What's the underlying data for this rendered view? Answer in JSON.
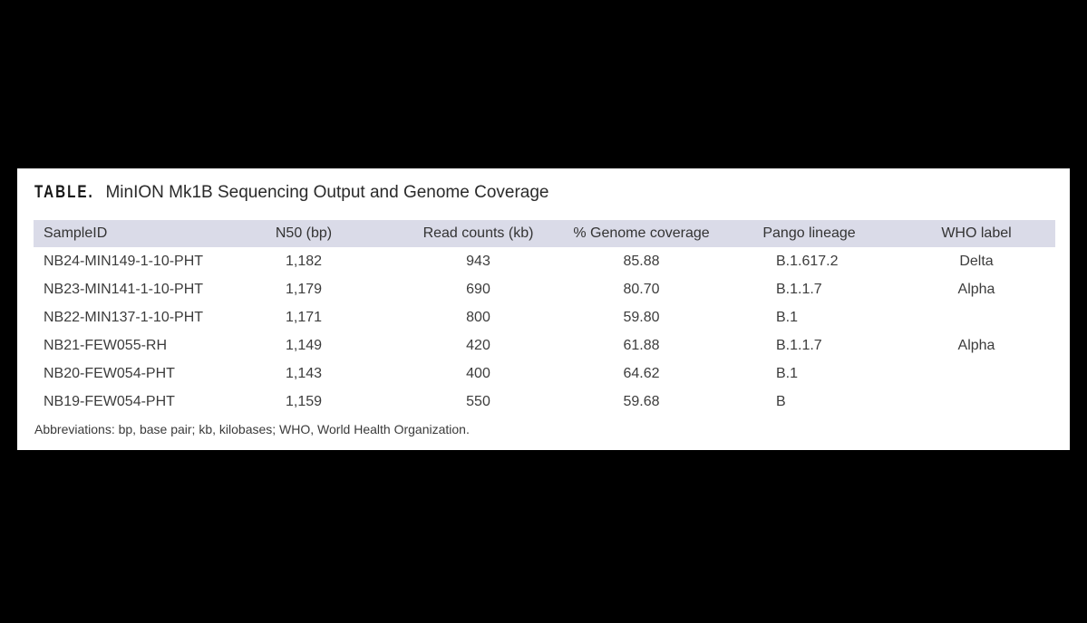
{
  "page": {
    "background_color": "#000000",
    "panel_color": "#ffffff"
  },
  "title": {
    "label": "TABLE.",
    "text": "MinION Mk1B Sequencing Output and Genome Coverage"
  },
  "table": {
    "header_background": "#dadbe8",
    "columns": [
      "SampleID",
      "N50 (bp)",
      "Read counts (kb)",
      "% Genome coverage",
      "Pango lineage",
      "WHO label"
    ],
    "rows": [
      [
        "NB24-MIN149-1-10-PHT",
        "1,182",
        "943",
        "85.88",
        "B.1.617.2",
        "Delta"
      ],
      [
        "NB23-MIN141-1-10-PHT",
        "1,179",
        "690",
        "80.70",
        "B.1.1.7",
        "Alpha"
      ],
      [
        "NB22-MIN137-1-10-PHT",
        "1,171",
        "800",
        "59.80",
        "B.1",
        ""
      ],
      [
        "NB21-FEW055-RH",
        "1,149",
        "420",
        "61.88",
        "B.1.1.7",
        "Alpha"
      ],
      [
        "NB20-FEW054-PHT",
        "1,143",
        "400",
        "64.62",
        "B.1",
        ""
      ],
      [
        "NB19-FEW054-PHT",
        "1,159",
        "550",
        "59.68",
        "B",
        ""
      ]
    ]
  },
  "footnote": "Abbreviations: bp, base pair; kb, kilobases; WHO, World Health Organization."
}
